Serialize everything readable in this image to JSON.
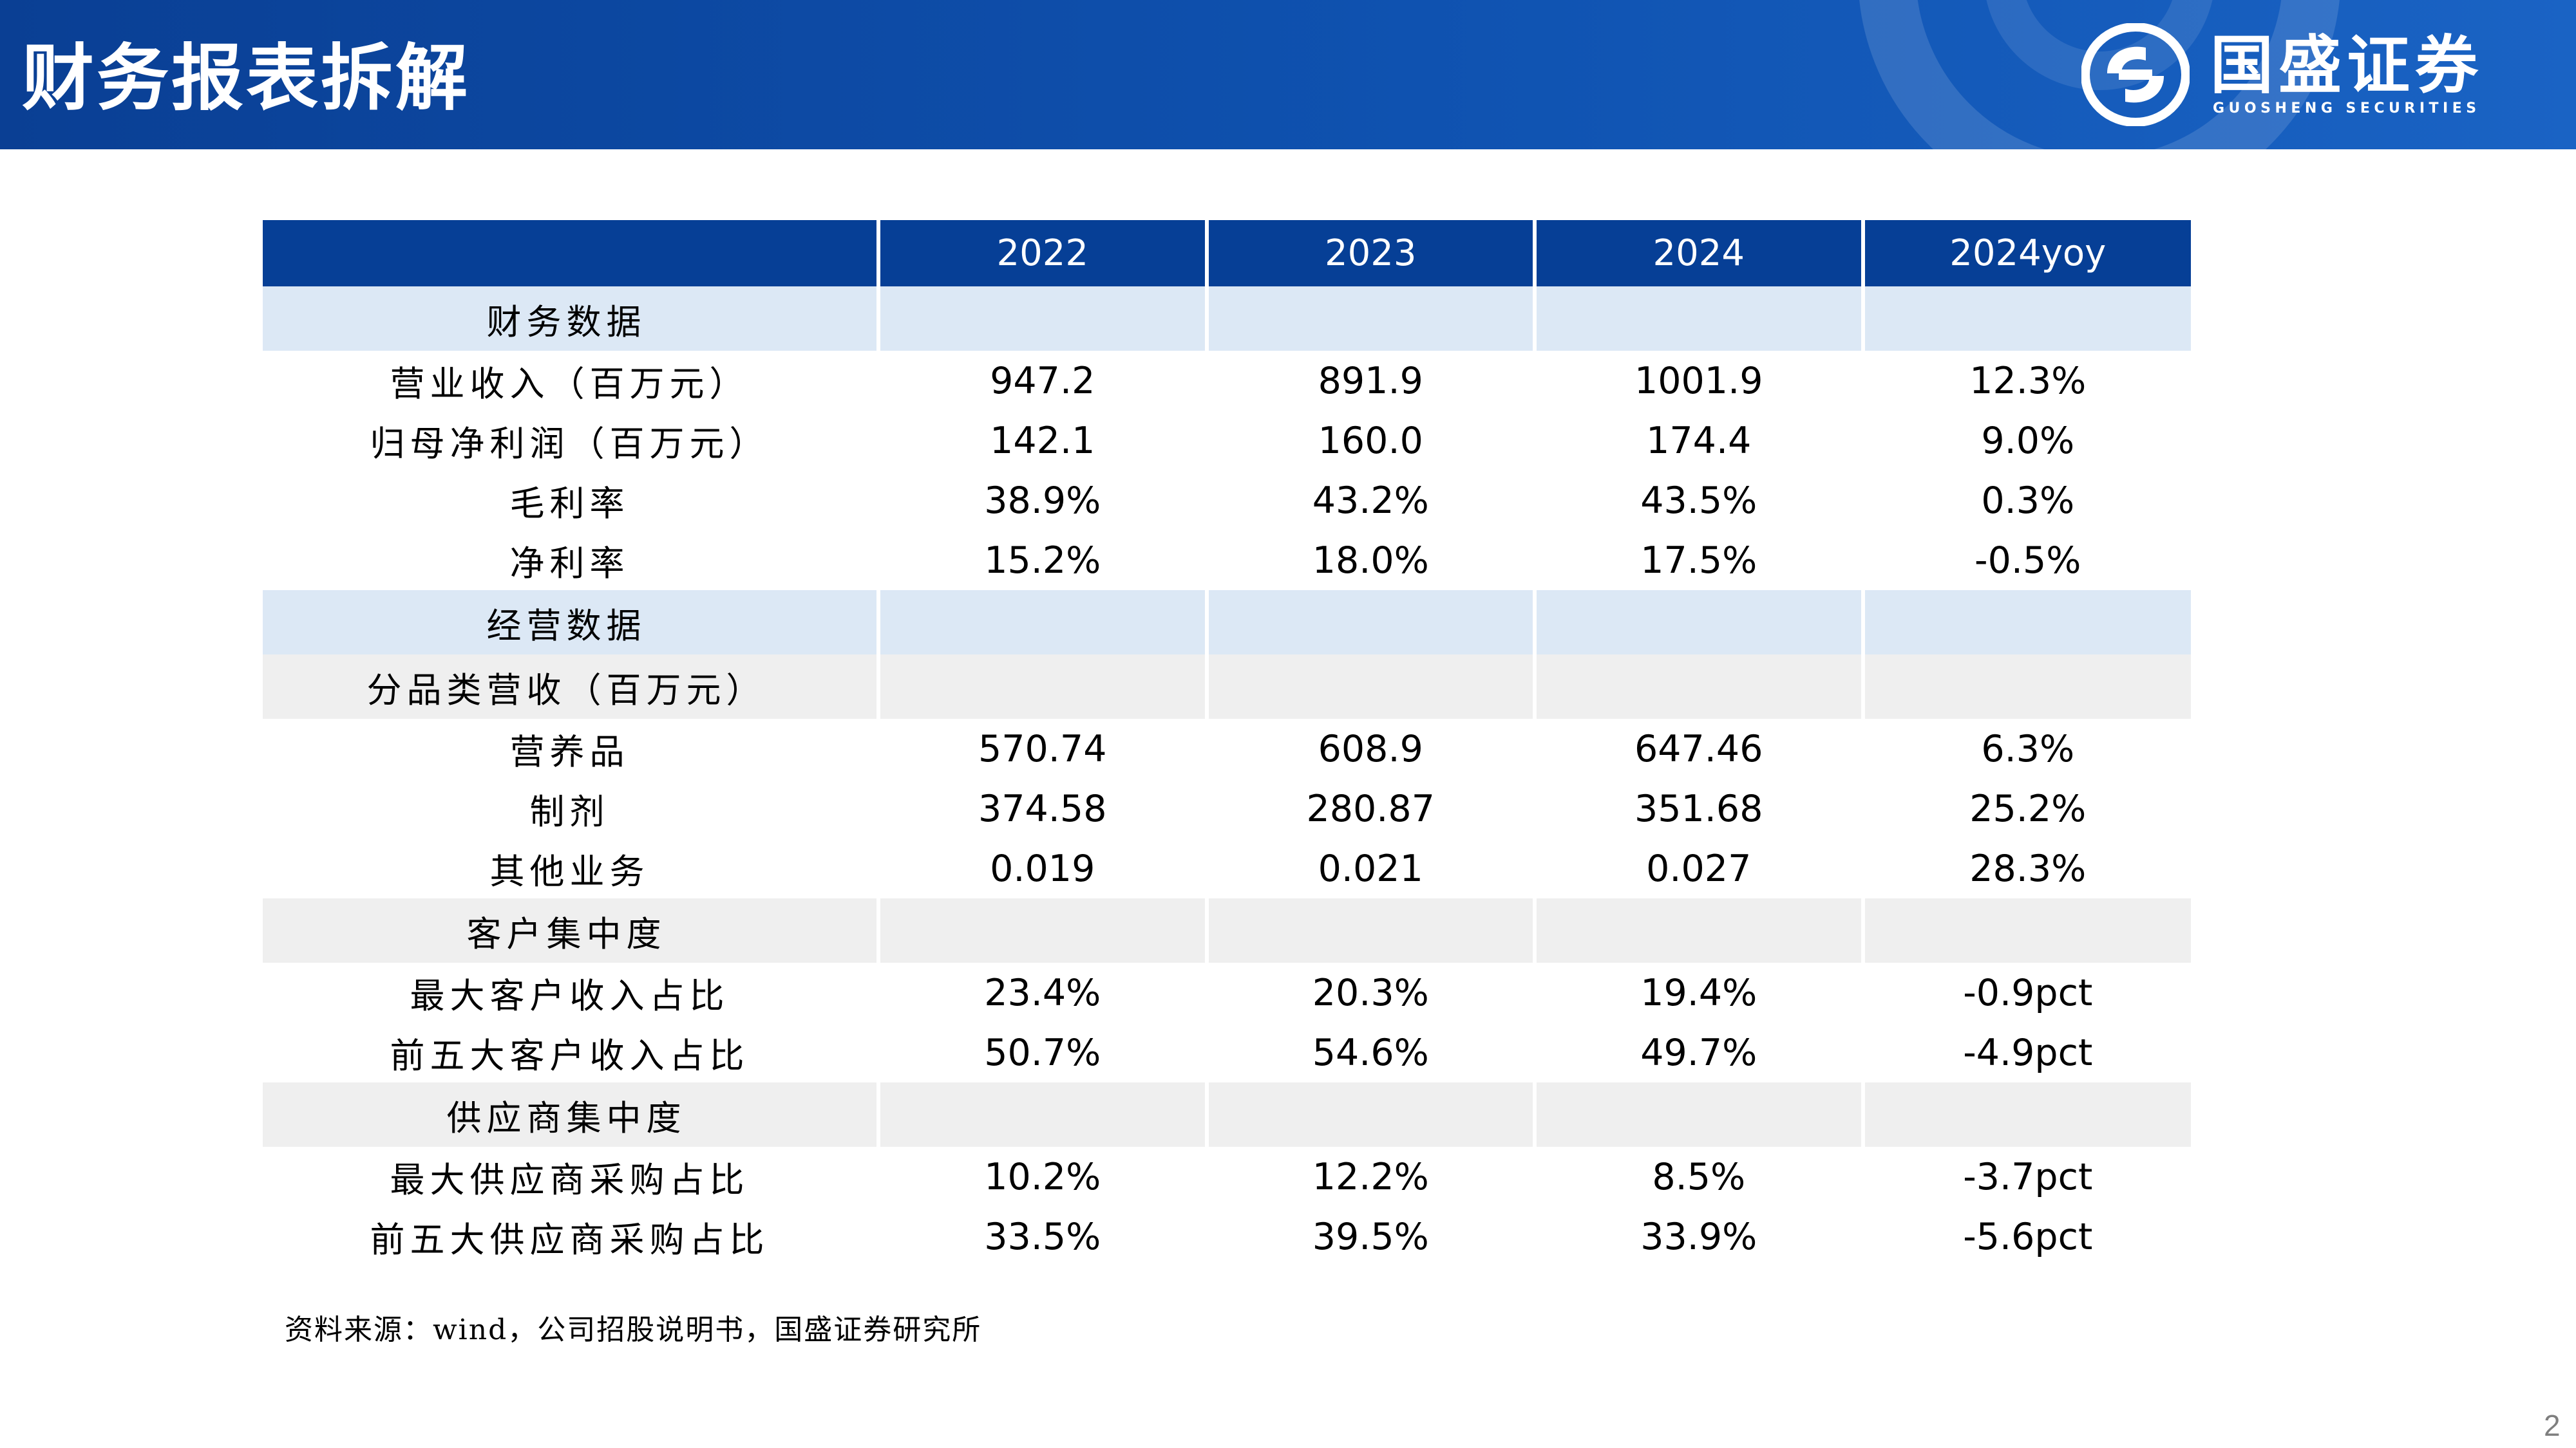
{
  "slide": {
    "title": "财务报表拆解",
    "page_number": "2"
  },
  "brand": {
    "name_cn": "国盛证券",
    "name_en": "GUOSHENG SECURITIES",
    "logo_icon": "guosheng-logo-icon"
  },
  "colors": {
    "header_blue": "#0a3f94",
    "table_header": "#063f96",
    "section_blue": "#dce8f5",
    "section_gray": "#efefef"
  },
  "table": {
    "header": [
      "",
      "2022",
      "2023",
      "2024",
      "2024yoy"
    ],
    "rows": [
      {
        "kind": "sec-blue",
        "cells": [
          "财务数据",
          "",
          "",
          "",
          ""
        ]
      },
      {
        "kind": "data",
        "cells": [
          "营业收入（百万元）",
          "947.2",
          "891.9",
          "1001.9",
          "12.3%"
        ]
      },
      {
        "kind": "data",
        "cells": [
          "归母净利润（百万元）",
          "142.1",
          "160.0",
          "174.4",
          "9.0%"
        ]
      },
      {
        "kind": "data",
        "cells": [
          "毛利率",
          "38.9%",
          "43.2%",
          "43.5%",
          "0.3%"
        ]
      },
      {
        "kind": "data",
        "cells": [
          "净利率",
          "15.2%",
          "18.0%",
          "17.5%",
          "-0.5%"
        ]
      },
      {
        "kind": "sec-blue",
        "cells": [
          "经营数据",
          "",
          "",
          "",
          ""
        ]
      },
      {
        "kind": "sec-gray",
        "cells": [
          "分品类营收（百万元）",
          "",
          "",
          "",
          ""
        ]
      },
      {
        "kind": "data",
        "cells": [
          "营养品",
          "570.74",
          "608.9",
          "647.46",
          "6.3%"
        ]
      },
      {
        "kind": "data",
        "cells": [
          "制剂",
          "374.58",
          "280.87",
          "351.68",
          "25.2%"
        ]
      },
      {
        "kind": "data",
        "cells": [
          "其他业务",
          "0.019",
          "0.021",
          "0.027",
          "28.3%"
        ]
      },
      {
        "kind": "sec-gray",
        "cells": [
          "客户集中度",
          "",
          "",
          "",
          ""
        ]
      },
      {
        "kind": "data",
        "cells": [
          "最大客户收入占比",
          "23.4%",
          "20.3%",
          "19.4%",
          "-0.9pct"
        ]
      },
      {
        "kind": "data",
        "cells": [
          "前五大客户收入占比",
          "50.7%",
          "54.6%",
          "49.7%",
          "-4.9pct"
        ]
      },
      {
        "kind": "sec-gray",
        "cells": [
          "供应商集中度",
          "",
          "",
          "",
          ""
        ]
      },
      {
        "kind": "data",
        "cells": [
          "最大供应商采购占比",
          "10.2%",
          "12.2%",
          "8.5%",
          "-3.7pct"
        ]
      },
      {
        "kind": "data",
        "cells": [
          "前五大供应商采购占比",
          "33.5%",
          "39.5%",
          "33.9%",
          "-5.6pct"
        ]
      }
    ]
  },
  "source": "资料来源：wind，公司招股说明书，国盛证券研究所"
}
